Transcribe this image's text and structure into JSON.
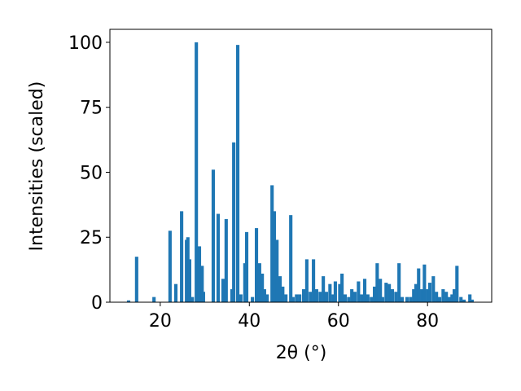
{
  "chart_data": {
    "type": "bar",
    "xlabel": "2θ (°)",
    "ylabel": "Intensities (scaled)",
    "color": "#1f77b4",
    "grid": false,
    "x": [
      12.9,
      14.7,
      18.6,
      22.2,
      23.5,
      24.8,
      25.9,
      26.2,
      26.6,
      27.2,
      28.1,
      28.8,
      29.4,
      29.7,
      31.9,
      33.0,
      34.1,
      34.8,
      36.1,
      36.5,
      37.4,
      38.1,
      39.0,
      39.4,
      40.7,
      41.6,
      42.3,
      42.9,
      43.4,
      44.0,
      45.1,
      45.6,
      46.2,
      46.9,
      47.5,
      48.2,
      49.3,
      49.8,
      50.6,
      51.3,
      52.2,
      52.9,
      53.7,
      54.4,
      55.1,
      55.9,
      56.6,
      57.3,
      58.1,
      58.8,
      59.3,
      60.3,
      60.8,
      61.5,
      62.3,
      63.0,
      63.7,
      64.5,
      65.2,
      65.9,
      66.6,
      67.4,
      68.1,
      68.7,
      69.4,
      69.9,
      70.7,
      71.4,
      72.1,
      72.9,
      73.6,
      74.3,
      75.4,
      76.2,
      76.9,
      77.4,
      78.0,
      78.7,
      79.3,
      80.0,
      80.5,
      81.3,
      82.0,
      82.7,
      83.5,
      84.2,
      84.9,
      85.5,
      86.0,
      86.6,
      87.5,
      88.2,
      89.5,
      90.0
    ],
    "values": [
      0.7,
      17.5,
      2,
      27.5,
      7,
      35,
      24,
      25,
      16.5,
      2,
      100,
      21.5,
      14,
      4,
      51,
      34,
      9,
      32,
      5,
      61.5,
      99,
      3,
      15,
      27,
      2,
      28.5,
      15,
      11,
      5,
      3,
      45,
      35,
      24,
      10,
      6,
      3,
      33.5,
      2,
      3,
      3,
      5,
      16.5,
      4,
      16.5,
      5,
      4,
      10,
      4,
      7,
      3,
      8,
      7,
      11,
      3,
      2,
      5,
      4,
      8,
      3,
      9,
      3,
      2,
      6,
      15,
      9,
      2,
      7.5,
      7,
      5,
      4,
      15,
      2,
      2,
      2,
      5,
      7,
      13,
      5,
      14.5,
      5,
      7.5,
      10,
      4,
      2,
      5,
      4,
      2,
      3,
      5,
      14,
      2,
      1,
      3,
      1
    ],
    "xlim": [
      8.7,
      94.4
    ],
    "xticks": [
      20,
      40,
      60,
      80
    ],
    "ylim": [
      0,
      105
    ],
    "yticks": [
      0,
      25,
      50,
      75,
      100
    ]
  }
}
